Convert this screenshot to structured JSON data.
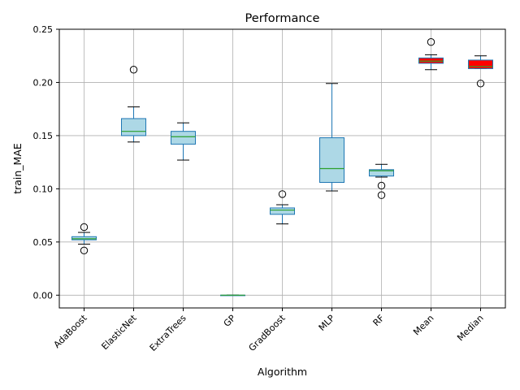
{
  "chart_data": {
    "type": "boxplot",
    "title": "Performance",
    "xlabel": "Algorithm",
    "ylabel": "train_MAE",
    "ylim": [
      -0.012,
      0.25
    ],
    "yticks": [
      0.0,
      0.05,
      0.1,
      0.15,
      0.2,
      0.25
    ],
    "ytick_labels": [
      "0.00",
      "0.05",
      "0.10",
      "0.15",
      "0.20",
      "0.25"
    ],
    "grid": true,
    "categories": [
      "AdaBoost",
      "ElasticNet",
      "ExtraTrees",
      "GP",
      "GradBoost",
      "MLP",
      "RF",
      "Mean",
      "Median"
    ],
    "boxes": [
      {
        "name": "AdaBoost",
        "whisker_low": 0.048,
        "q1": 0.052,
        "median": 0.053,
        "q3": 0.055,
        "whisker_high": 0.059,
        "outliers": [
          0.064,
          0.042
        ],
        "fill": "#add8e6"
      },
      {
        "name": "ElasticNet",
        "whisker_low": 0.144,
        "q1": 0.15,
        "median": 0.154,
        "q3": 0.166,
        "whisker_high": 0.177,
        "outliers": [
          0.212
        ],
        "fill": "#add8e6"
      },
      {
        "name": "ExtraTrees",
        "whisker_low": 0.127,
        "q1": 0.142,
        "median": 0.149,
        "q3": 0.154,
        "whisker_high": 0.162,
        "outliers": [],
        "fill": "#add8e6"
      },
      {
        "name": "GP",
        "whisker_low": 0.0,
        "q1": 0.0,
        "median": 0.0,
        "q3": 0.0,
        "whisker_high": 0.0,
        "outliers": [],
        "fill": "#add8e6"
      },
      {
        "name": "GradBoost",
        "whisker_low": 0.067,
        "q1": 0.076,
        "median": 0.08,
        "q3": 0.082,
        "whisker_high": 0.085,
        "outliers": [
          0.095
        ],
        "fill": "#add8e6"
      },
      {
        "name": "MLP",
        "whisker_low": 0.098,
        "q1": 0.106,
        "median": 0.119,
        "q3": 0.148,
        "whisker_high": 0.199,
        "outliers": [],
        "fill": "#add8e6"
      },
      {
        "name": "RF",
        "whisker_low": 0.111,
        "q1": 0.112,
        "median": 0.117,
        "q3": 0.118,
        "whisker_high": 0.123,
        "outliers": [
          0.103,
          0.094
        ],
        "fill": "#add8e6"
      },
      {
        "name": "Mean",
        "whisker_low": 0.212,
        "q1": 0.218,
        "median": 0.22,
        "q3": 0.223,
        "whisker_high": 0.226,
        "outliers": [
          0.238
        ],
        "fill": "#ff0000"
      },
      {
        "name": "Median",
        "whisker_low": 0.213,
        "q1": 0.213,
        "median": 0.215,
        "q3": 0.221,
        "whisker_high": 0.225,
        "outliers": [
          0.199
        ],
        "fill": "#ff0000"
      }
    ],
    "colors": {
      "box_edge": "#1f77b4",
      "median_line": "#2ca02c",
      "grid": "#b0b0b0",
      "flier_edge": "#000000"
    }
  }
}
